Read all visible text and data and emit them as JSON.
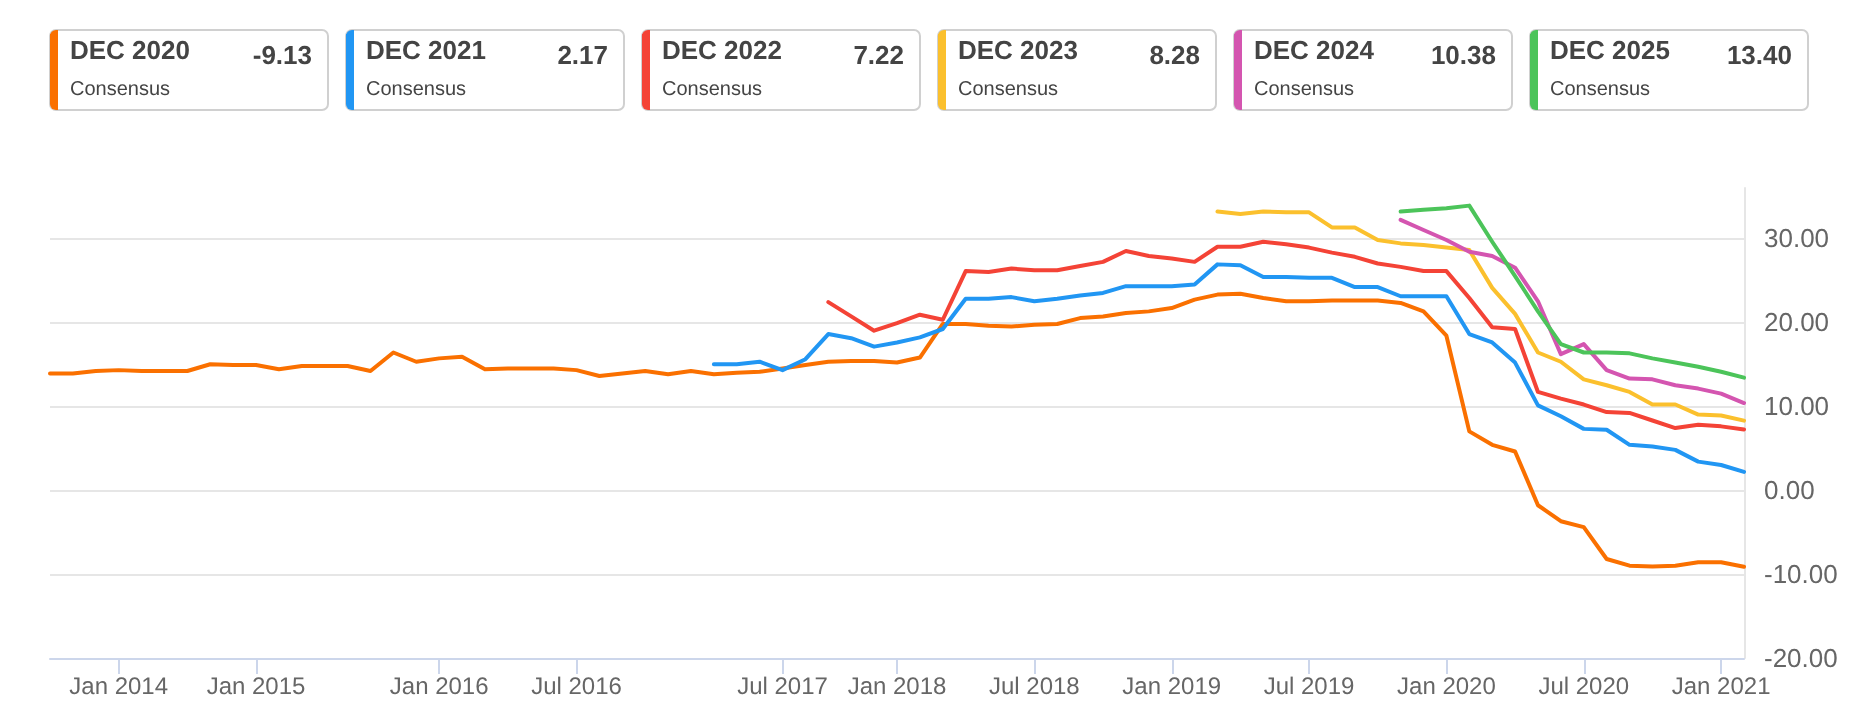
{
  "chart_data": {
    "type": "line",
    "categories": [
      null,
      null,
      null,
      "Jan 2014",
      null,
      null,
      null,
      null,
      null,
      "Jan 2015",
      null,
      null,
      null,
      null,
      null,
      null,
      null,
      "Jan 2016",
      null,
      null,
      null,
      null,
      null,
      "Jul 2016",
      null,
      null,
      null,
      null,
      null,
      null,
      null,
      null,
      "Jul 2017",
      null,
      null,
      null,
      null,
      "Jan 2018",
      null,
      null,
      null,
      null,
      null,
      "Jul 2018",
      null,
      null,
      null,
      null,
      null,
      "Jan 2019",
      null,
      null,
      null,
      null,
      null,
      "Jul 2019",
      null,
      null,
      null,
      null,
      null,
      "Jan 2020",
      null,
      null,
      null,
      null,
      null,
      "Jul 2020",
      null,
      null,
      null,
      null,
      null,
      "Jan 2021",
      null
    ],
    "series": [
      {
        "name": "DEC 2020",
        "color": "#fa7000",
        "values": [
          13.9,
          13.9,
          14.2,
          14.3,
          14.2,
          14.2,
          14.2,
          15.0,
          14.9,
          14.9,
          14.4,
          14.8,
          14.8,
          14.8,
          14.2,
          16.4,
          15.3,
          15.7,
          15.9,
          14.4,
          14.5,
          14.5,
          14.5,
          14.3,
          13.6,
          13.9,
          14.2,
          13.8,
          14.2,
          13.8,
          14.0,
          14.1,
          14.5,
          14.9,
          15.3,
          15.4,
          15.4,
          15.2,
          15.8,
          19.8,
          19.8,
          19.6,
          19.5,
          19.7,
          19.8,
          20.5,
          20.7,
          21.1,
          21.3,
          21.7,
          22.7,
          23.3,
          23.4,
          22.9,
          22.5,
          22.5,
          22.6,
          22.6,
          22.6,
          22.3,
          21.3,
          18.4,
          7.0,
          5.4,
          4.6,
          -1.8,
          -3.7,
          -4.4,
          -8.2,
          -9.0,
          -9.1,
          -9.0,
          -8.6,
          -8.6,
          -9.13
        ]
      },
      {
        "name": "DEC 2021",
        "color": "#2196f3",
        "values": [
          null,
          null,
          null,
          null,
          null,
          null,
          null,
          null,
          null,
          null,
          null,
          null,
          null,
          null,
          null,
          null,
          null,
          null,
          null,
          null,
          null,
          null,
          null,
          null,
          null,
          null,
          null,
          null,
          null,
          15.0,
          15.0,
          15.3,
          14.3,
          15.6,
          18.6,
          18.1,
          17.1,
          17.6,
          18.2,
          19.2,
          22.8,
          22.8,
          23.0,
          22.5,
          22.8,
          23.2,
          23.5,
          24.3,
          24.3,
          24.3,
          24.5,
          26.9,
          26.8,
          25.4,
          25.4,
          25.3,
          25.3,
          24.2,
          24.2,
          23.1,
          23.1,
          23.1,
          18.6,
          17.6,
          15.2,
          10.1,
          8.8,
          7.3,
          7.2,
          5.4,
          5.2,
          4.8,
          3.4,
          3.0,
          2.17
        ]
      },
      {
        "name": "DEC 2022",
        "color": "#f44336",
        "values": [
          null,
          null,
          null,
          null,
          null,
          null,
          null,
          null,
          null,
          null,
          null,
          null,
          null,
          null,
          null,
          null,
          null,
          null,
          null,
          null,
          null,
          null,
          null,
          null,
          null,
          null,
          null,
          null,
          null,
          null,
          null,
          null,
          null,
          null,
          22.4,
          20.7,
          19.0,
          19.9,
          20.9,
          20.3,
          26.1,
          26.0,
          26.4,
          26.2,
          26.2,
          26.7,
          27.2,
          28.5,
          27.9,
          27.6,
          27.2,
          29.0,
          29.0,
          29.6,
          29.3,
          28.9,
          28.3,
          27.8,
          27.0,
          26.6,
          26.1,
          26.1,
          22.9,
          19.4,
          19.2,
          11.7,
          10.9,
          10.2,
          9.3,
          9.2,
          8.3,
          7.4,
          7.8,
          7.6,
          7.22
        ]
      },
      {
        "name": "DEC 2023",
        "color": "#fbc02d",
        "values": [
          null,
          null,
          null,
          null,
          null,
          null,
          null,
          null,
          null,
          null,
          null,
          null,
          null,
          null,
          null,
          null,
          null,
          null,
          null,
          null,
          null,
          null,
          null,
          null,
          null,
          null,
          null,
          null,
          null,
          null,
          null,
          null,
          null,
          null,
          null,
          null,
          null,
          null,
          null,
          null,
          null,
          null,
          null,
          null,
          null,
          null,
          null,
          null,
          null,
          null,
          null,
          33.2,
          32.9,
          33.2,
          33.1,
          33.1,
          31.3,
          31.3,
          29.8,
          29.4,
          29.2,
          28.9,
          28.6,
          24.1,
          21.0,
          16.4,
          15.3,
          13.2,
          12.5,
          11.7,
          10.2,
          10.2,
          9.0,
          8.9,
          8.28
        ]
      },
      {
        "name": "DEC 2024",
        "color": "#d455b0",
        "values": [
          null,
          null,
          null,
          null,
          null,
          null,
          null,
          null,
          null,
          null,
          null,
          null,
          null,
          null,
          null,
          null,
          null,
          null,
          null,
          null,
          null,
          null,
          null,
          null,
          null,
          null,
          null,
          null,
          null,
          null,
          null,
          null,
          null,
          null,
          null,
          null,
          null,
          null,
          null,
          null,
          null,
          null,
          null,
          null,
          null,
          null,
          null,
          null,
          null,
          null,
          null,
          null,
          null,
          null,
          null,
          null,
          null,
          null,
          null,
          32.2,
          31.0,
          29.8,
          28.4,
          27.9,
          26.5,
          22.5,
          16.2,
          17.4,
          14.3,
          13.3,
          13.2,
          12.5,
          12.1,
          11.5,
          10.38
        ]
      },
      {
        "name": "DEC 2025",
        "color": "#4cc45a",
        "values": [
          null,
          null,
          null,
          null,
          null,
          null,
          null,
          null,
          null,
          null,
          null,
          null,
          null,
          null,
          null,
          null,
          null,
          null,
          null,
          null,
          null,
          null,
          null,
          null,
          null,
          null,
          null,
          null,
          null,
          null,
          null,
          null,
          null,
          null,
          null,
          null,
          null,
          null,
          null,
          null,
          null,
          null,
          null,
          null,
          null,
          null,
          null,
          null,
          null,
          null,
          null,
          null,
          null,
          null,
          null,
          null,
          null,
          null,
          null,
          33.2,
          33.4,
          33.6,
          33.9,
          29.6,
          25.5,
          21.3,
          17.4,
          16.4,
          16.4,
          16.3,
          15.7,
          15.2,
          14.7,
          14.1,
          13.4
        ]
      }
    ],
    "annotations": [
      "Consensus",
      "-9.13",
      "2.17",
      "7.22",
      "8.28",
      "10.38",
      "13.40"
    ],
    "ylim": [
      -20,
      36
    ],
    "yticks": [
      {
        "value": -20,
        "label": "-20.00"
      },
      {
        "value": -10,
        "label": "-10.00"
      },
      {
        "value": 0,
        "label": "0.00"
      },
      {
        "value": 10,
        "label": "10.00"
      },
      {
        "value": 20,
        "label": "20.00"
      },
      {
        "value": 30,
        "label": "30.00"
      }
    ],
    "grid": "y",
    "legend": "top",
    "marker": "none",
    "line_style": "solid"
  }
}
